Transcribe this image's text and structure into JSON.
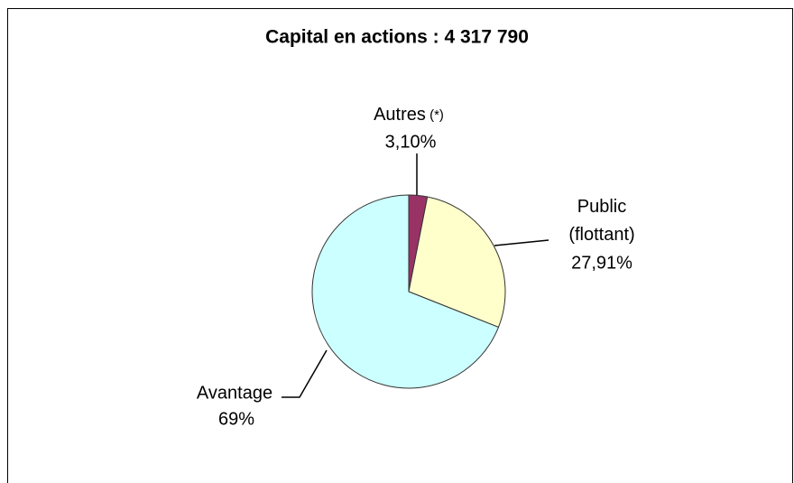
{
  "chart_data": {
    "type": "pie",
    "title": "Capital en actions : 4 317 790",
    "categories": [
      "Autres (*)",
      "Public (flottant)",
      "Avantage"
    ],
    "values": [
      3.1,
      27.91,
      69
    ],
    "value_labels": [
      "3,10%",
      "27,91%",
      "69%"
    ],
    "colors": [
      "#993366",
      "#ffffcc",
      "#ccffff"
    ]
  }
}
